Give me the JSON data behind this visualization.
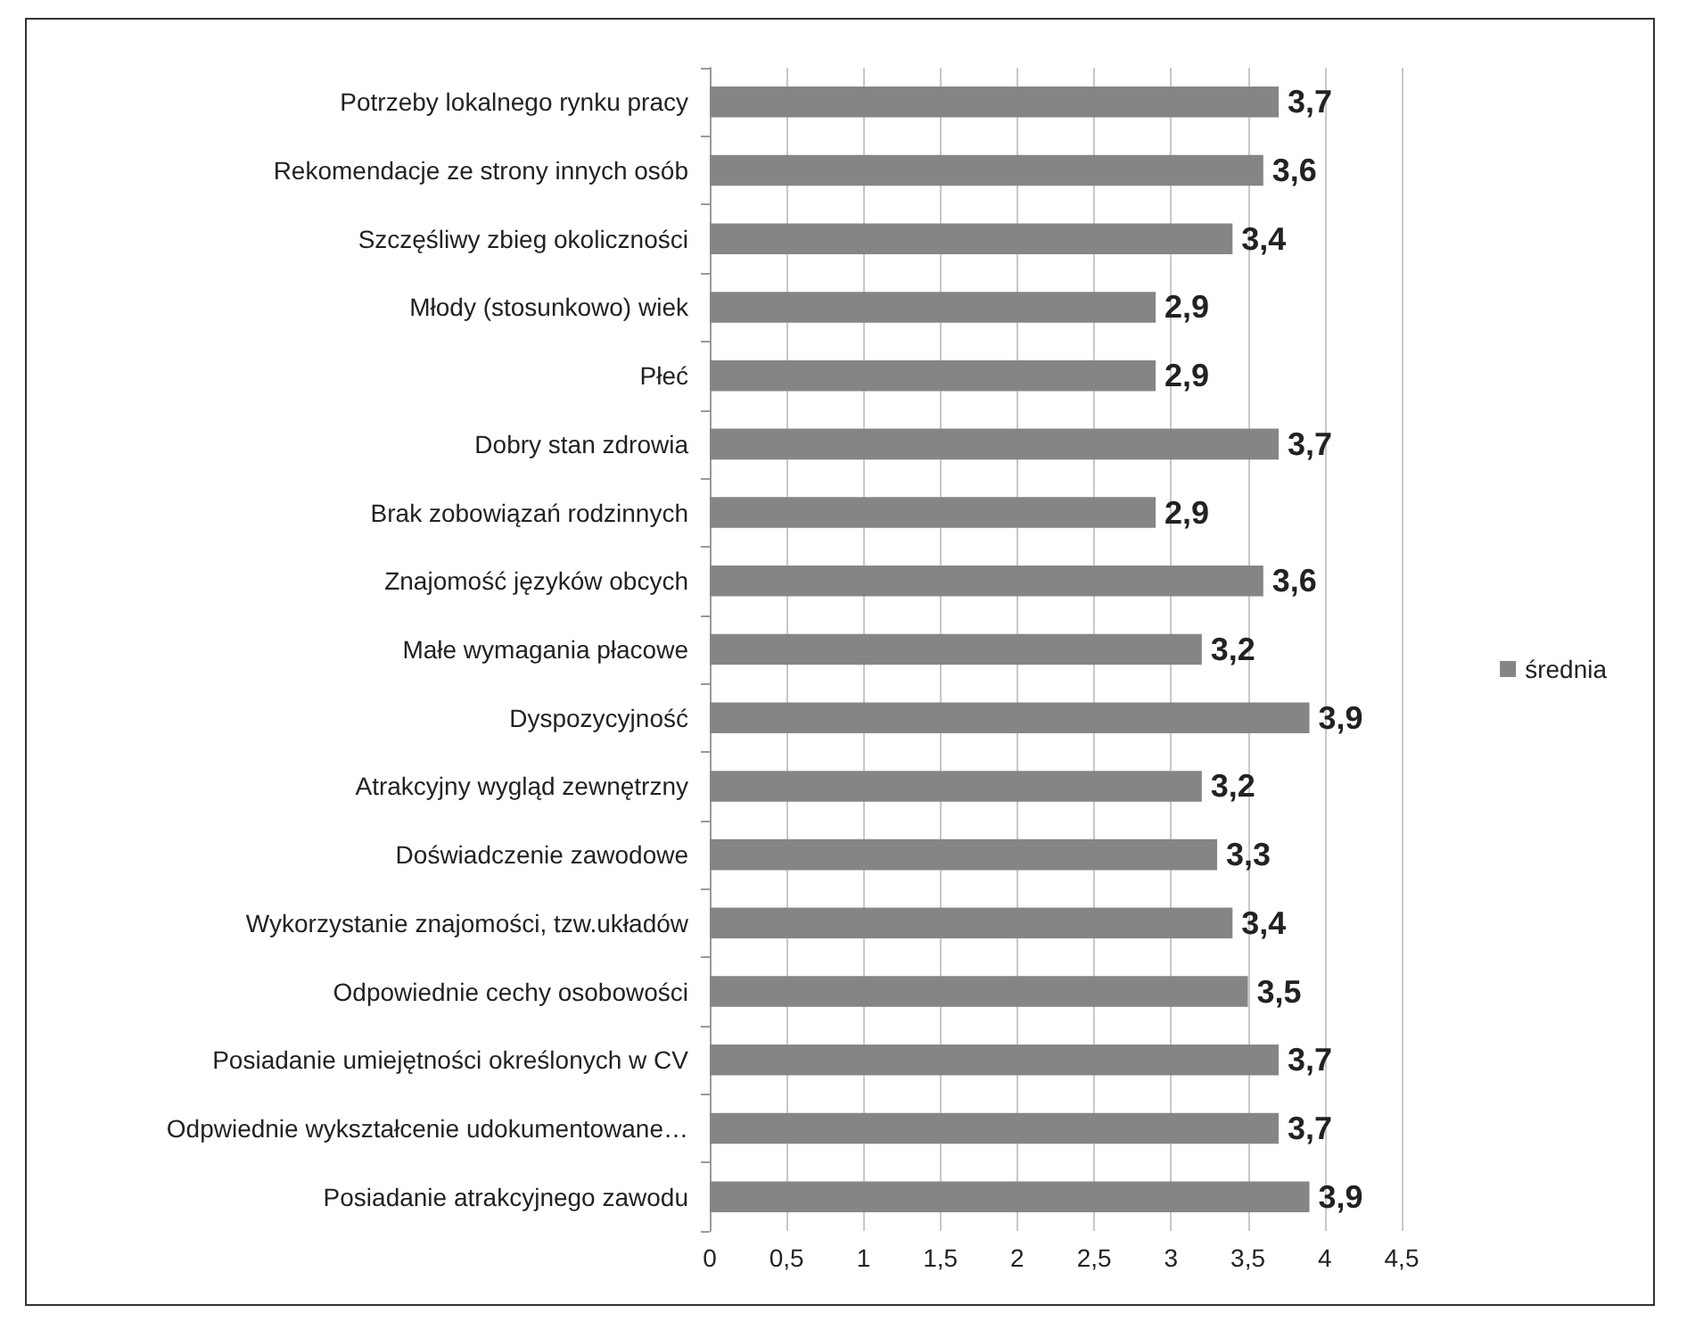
{
  "chart_data": {
    "type": "bar",
    "orientation": "horizontal",
    "categories": [
      "Potrzeby lokalnego rynku pracy",
      "Rekomendacje ze strony innych osób",
      "Szczęśliwy zbieg okoliczności",
      "Młody (stosunkowo) wiek",
      "Płeć",
      "Dobry stan zdrowia",
      "Brak zobowiązań rodzinnych",
      "Znajomość języków obcych",
      "Małe wymagania płacowe",
      "Dyspozycyjność",
      "Atrakcyjny wygląd zewnętrzny",
      "Doświadczenie zawodowe",
      "Wykorzystanie znajomości, tzw.układów",
      "Odpowiednie cechy osobowości",
      "Posiadanie umiejętności określonych w CV",
      "Odpwiednie wykształcenie udokumentowane…",
      "Posiadanie atrakcyjnego zawodu"
    ],
    "series": [
      {
        "name": "średnia",
        "color": "#858585",
        "values": [
          3.7,
          3.6,
          3.4,
          2.9,
          2.9,
          3.7,
          2.9,
          3.6,
          3.2,
          3.9,
          3.2,
          3.3,
          3.4,
          3.5,
          3.7,
          3.7,
          3.9
        ],
        "value_labels": [
          "3,7",
          "3,6",
          "3,4",
          "2,9",
          "2,9",
          "3,7",
          "2,9",
          "3,6",
          "3,2",
          "3,9",
          "3,2",
          "3,3",
          "3,4",
          "3,5",
          "3,7",
          "3,7",
          "3,9"
        ]
      }
    ],
    "xlim": [
      0,
      4.5
    ],
    "xticks": [
      0,
      {
        "value": 0.5,
        "label": "0,5"
      },
      1,
      {
        "value": 1.5,
        "label": "1,5"
      },
      2,
      {
        "value": 2.5,
        "label": "2,5"
      },
      3,
      {
        "value": 3.5,
        "label": "3,5"
      },
      4,
      {
        "value": 4.5,
        "label": "4,5"
      }
    ],
    "grid": "x",
    "legend": "right"
  }
}
